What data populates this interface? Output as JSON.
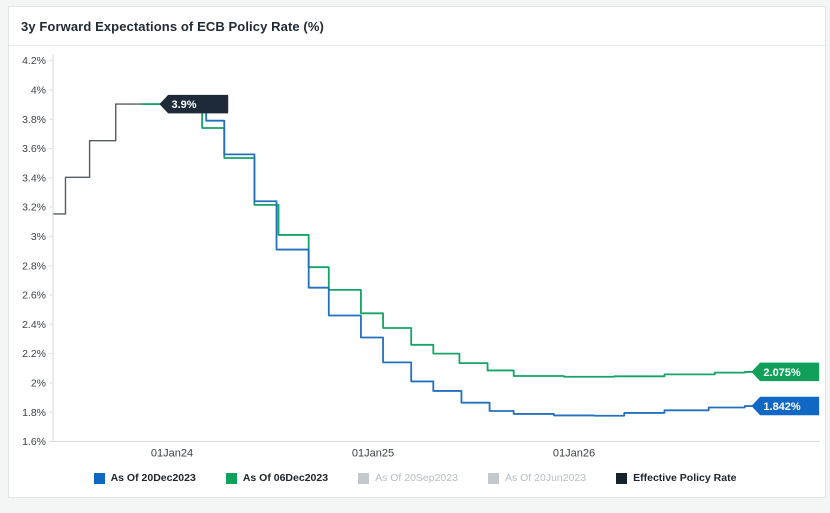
{
  "header": {
    "title": "3y Forward Expectations of ECB Policy Rate (%)"
  },
  "legend": {
    "items": [
      {
        "label": "As Of 20Dec2023",
        "color": "#1068c4",
        "enabled": true
      },
      {
        "label": "As Of 06Dec2023",
        "color": "#10a05a",
        "enabled": true
      },
      {
        "label": "As Of 20Sep2023",
        "color": "#c3c8cc",
        "enabled": false
      },
      {
        "label": "As Of 20Jun2023",
        "color": "#c3c8cc",
        "enabled": false
      },
      {
        "label": "Effective Policy Rate",
        "color": "#16222e",
        "enabled": true
      }
    ]
  },
  "chart_data": {
    "type": "line",
    "subtype": "step-after",
    "title": "3y Forward Expectations of ECB Policy Rate (%)",
    "xlabel": "",
    "ylabel": "",
    "grid": false,
    "legend_position": "bottom",
    "y_axis": {
      "min": 1.6,
      "max": 4.2,
      "step": 0.2,
      "unit": "%"
    },
    "x_ticks": [
      {
        "label": "01Jan24",
        "year": 2024
      },
      {
        "label": "01Jan25",
        "year": 2025
      },
      {
        "label": "01Jan26",
        "year": 2026
      }
    ],
    "x_range": [
      2023.41,
      2027.23
    ],
    "series": [
      {
        "name": "Effective Policy Rate",
        "color": "#565d64",
        "width": 1.4,
        "label_bg": "#1e2a38",
        "end_label": "3.9%",
        "end_x": 2023.955,
        "points": [
          [
            2023.41,
            3.153
          ],
          [
            2023.47,
            3.403
          ],
          [
            2023.59,
            3.653
          ],
          [
            2023.72,
            3.903
          ]
        ]
      },
      {
        "name": "As Of 06Dec2023",
        "color": "#14a465",
        "width": 1.8,
        "label_bg": "#10a05a",
        "end_label": "2.075%",
        "end_x": 2026.9,
        "points": [
          [
            2023.85,
            3.903
          ],
          [
            2024.15,
            3.74
          ],
          [
            2024.26,
            3.535
          ],
          [
            2024.41,
            3.215
          ],
          [
            2024.53,
            3.01
          ],
          [
            2024.68,
            2.79
          ],
          [
            2024.78,
            2.635
          ],
          [
            2024.94,
            2.475
          ],
          [
            2025.05,
            2.375
          ],
          [
            2025.19,
            2.26
          ],
          [
            2025.3,
            2.2
          ],
          [
            2025.43,
            2.135
          ],
          [
            2025.57,
            2.085
          ],
          [
            2025.7,
            2.047
          ],
          [
            2025.95,
            2.042
          ],
          [
            2026.2,
            2.045
          ],
          [
            2026.45,
            2.058
          ],
          [
            2026.7,
            2.07
          ],
          [
            2026.85,
            2.075
          ]
        ]
      },
      {
        "name": "As Of 20Dec2023",
        "color": "#2470bd",
        "width": 1.8,
        "label_bg": "#1068c4",
        "end_label": "1.842%",
        "end_x": 2026.9,
        "points": [
          [
            2023.97,
            3.903
          ],
          [
            2024.17,
            3.79
          ],
          [
            2024.26,
            3.56
          ],
          [
            2024.41,
            3.24
          ],
          [
            2024.52,
            2.91
          ],
          [
            2024.68,
            2.65
          ],
          [
            2024.78,
            2.46
          ],
          [
            2024.94,
            2.31
          ],
          [
            2025.05,
            2.14
          ],
          [
            2025.19,
            2.01
          ],
          [
            2025.3,
            1.945
          ],
          [
            2025.44,
            1.865
          ],
          [
            2025.58,
            1.808
          ],
          [
            2025.7,
            1.788
          ],
          [
            2025.9,
            1.778
          ],
          [
            2026.1,
            1.776
          ],
          [
            2026.25,
            1.795
          ],
          [
            2026.45,
            1.813
          ],
          [
            2026.67,
            1.832
          ],
          [
            2026.85,
            1.842
          ]
        ]
      }
    ]
  }
}
